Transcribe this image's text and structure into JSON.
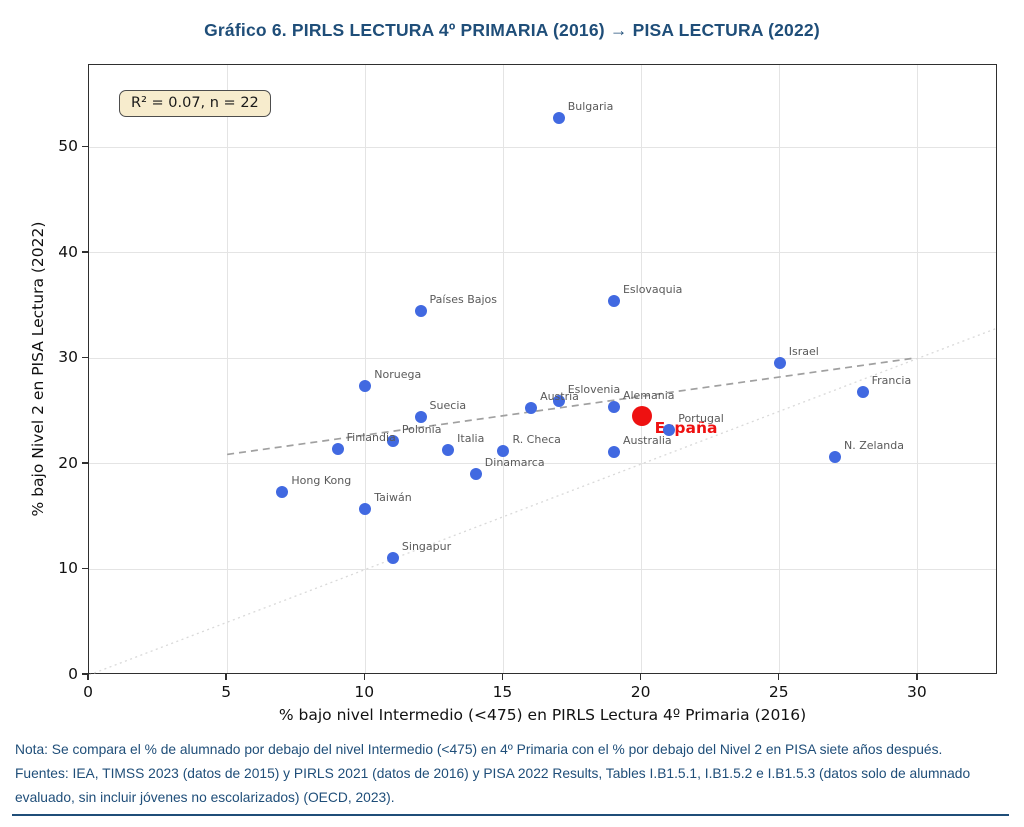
{
  "title": "Gráfico 6. PIRLS LECTURA 4º PRIMARIA (2016) → PISA LECTURA (2022)",
  "colors": {
    "title": "#1F4E79",
    "note": "#1F4E79",
    "rule": "#1F4E79",
    "dot": "#4169E1",
    "highlight_dot": "#EE1111",
    "highlight_label": "#EE1111",
    "point_label": "#5A5A5A",
    "trend": "#A0A0A0",
    "identity": "#D9D9D9"
  },
  "chart_data": {
    "type": "scatter",
    "title": "Gráfico 6. PIRLS LECTURA 4º PRIMARIA (2016) → PISA LECTURA (2022)",
    "xlabel": "% bajo nivel Intermedio (<475) en PIRLS Lectura 4º Primaria (2016)",
    "ylabel": "% bajo Nivel 2 en PISA Lectura (2022)",
    "xlim": [
      0,
      32.9
    ],
    "ylim": [
      0,
      57.8
    ],
    "x_ticks": [
      0,
      5,
      10,
      15,
      20,
      25,
      30
    ],
    "y_ticks": [
      0,
      10,
      20,
      30,
      40,
      50
    ],
    "grid": true,
    "legend": "none",
    "annotation": "R² = 0.07, n = 22",
    "points": [
      {
        "label": "Bulgaria",
        "x": 17,
        "y": 52.8
      },
      {
        "label": "Eslovaquia",
        "x": 19,
        "y": 35.4
      },
      {
        "label": "Países Bajos",
        "x": 12,
        "y": 34.5
      },
      {
        "label": "Israel",
        "x": 25,
        "y": 29.6
      },
      {
        "label": "Noruega",
        "x": 10,
        "y": 27.4
      },
      {
        "label": "Francia",
        "x": 28,
        "y": 26.8
      },
      {
        "label": "Eslovenia",
        "x": 17,
        "y": 26.0
      },
      {
        "label": "Alemania",
        "x": 19,
        "y": 25.4
      },
      {
        "label": "Austria",
        "x": 16,
        "y": 25.3
      },
      {
        "label": "España",
        "x": 20,
        "y": 24.5,
        "highlight": true
      },
      {
        "label": "Suecia",
        "x": 12,
        "y": 24.4
      },
      {
        "label": "Portugal",
        "x": 21,
        "y": 23.2
      },
      {
        "label": "Polonia",
        "x": 11,
        "y": 22.2
      },
      {
        "label": "Finlandia",
        "x": 9,
        "y": 21.4
      },
      {
        "label": "Italia",
        "x": 13,
        "y": 21.3
      },
      {
        "label": "R. Checa",
        "x": 15,
        "y": 21.2
      },
      {
        "label": "Australia",
        "x": 19,
        "y": 21.1
      },
      {
        "label": "N. Zelanda",
        "x": 27,
        "y": 20.7
      },
      {
        "label": "Dinamarca",
        "x": 14,
        "y": 19.0
      },
      {
        "label": "Hong Kong",
        "x": 7,
        "y": 17.3
      },
      {
        "label": "Taiwán",
        "x": 10,
        "y": 15.7
      },
      {
        "label": "Singapur",
        "x": 11,
        "y": 11.1
      }
    ],
    "trend_line": {
      "style": "dashed",
      "x1": 5,
      "y1": 20.9,
      "x2": 29.8,
      "y2": 30.0
    },
    "identity_line": {
      "style": "dotted",
      "x1": 0,
      "y1": 0,
      "x2": 32.9,
      "y2": 32.9
    }
  },
  "note": {
    "nota": "Nota: Se compara el % de alumnado por debajo del nivel Intermedio (<475) en 4º Primaria con el % por debajo del Nivel 2 en PISA siete años después.",
    "fuentes": "Fuentes: IEA, TIMSS 2023 (datos de 2015) y PIRLS 2021 (datos de 2016) y  PISA 2022 Results, Tables I.B1.5.1, I.B1.5.2 e I.B1.5.3 (datos solo de alumnado evaluado, sin incluir jóvenes no escolarizados) (OECD, 2023)."
  }
}
